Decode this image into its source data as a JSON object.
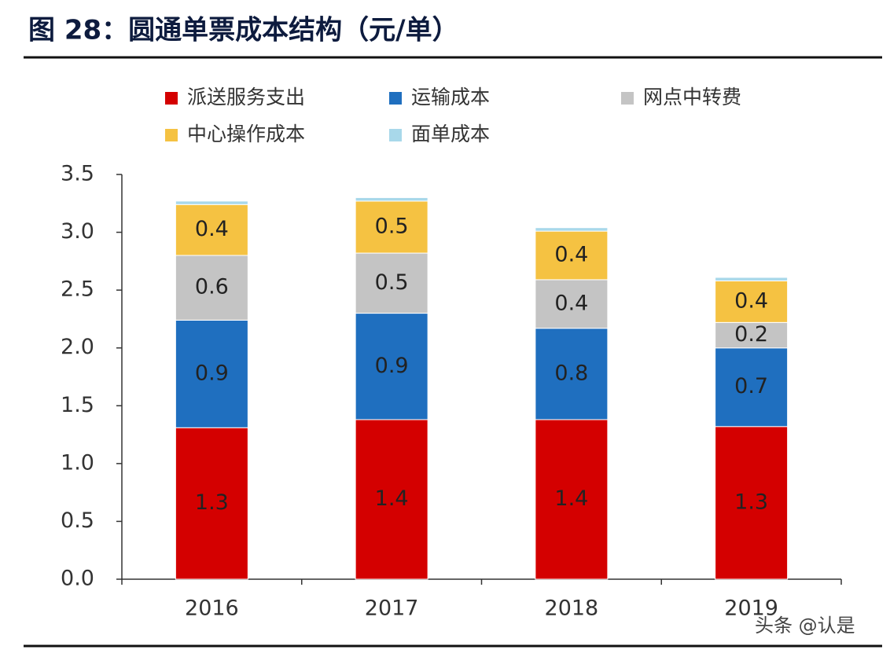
{
  "chart_data": {
    "type": "stacked-bar",
    "title": "图 28：圆通单票成本结构（元/单）",
    "categories": [
      "2016",
      "2017",
      "2018",
      "2019"
    ],
    "series": [
      {
        "name": "派送服务支出",
        "color": "#d40000",
        "values": [
          1.31,
          1.38,
          1.38,
          1.32
        ],
        "value_labels": [
          "1.3",
          "1.4",
          "1.4",
          "1.3"
        ]
      },
      {
        "name": "运输成本",
        "color": "#1f6fbf",
        "values": [
          0.93,
          0.92,
          0.79,
          0.68
        ],
        "value_labels": [
          "0.9",
          "0.9",
          "0.8",
          "0.7"
        ]
      },
      {
        "name": "网点中转费",
        "color": "#c4c4c4",
        "values": [
          0.56,
          0.52,
          0.42,
          0.22
        ],
        "value_labels": [
          "0.6",
          "0.5",
          "0.4",
          "0.2"
        ]
      },
      {
        "name": "中心操作成本",
        "color": "#f5c242",
        "values": [
          0.44,
          0.45,
          0.42,
          0.36
        ],
        "value_labels": [
          "0.4",
          "0.5",
          "0.4",
          "0.4"
        ]
      },
      {
        "name": "面单成本",
        "color": "#a8d8ea",
        "values": [
          0.03,
          0.03,
          0.03,
          0.03
        ],
        "value_labels": [
          null,
          null,
          null,
          null
        ]
      }
    ],
    "ylim": [
      0,
      3.5
    ],
    "yticks": [
      {
        "value": 0,
        "label": "0.0"
      },
      {
        "value": 0.5,
        "label": "0.5"
      },
      {
        "value": 1,
        "label": "1.0"
      },
      {
        "value": 1.5,
        "label": "1.5"
      },
      {
        "value": 2,
        "label": "2.0"
      },
      {
        "value": 2.5,
        "label": "2.5"
      },
      {
        "value": 3,
        "label": "3.0"
      },
      {
        "value": 3.5,
        "label": "3.5"
      }
    ],
    "grid": false,
    "watermark": "头条 @认是"
  }
}
